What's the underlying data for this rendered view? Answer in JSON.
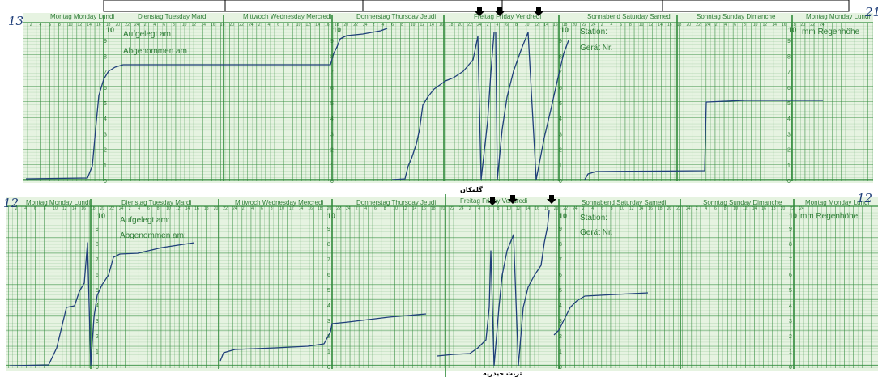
{
  "top_strip": {
    "handwritten_number": "13",
    "handwritten_right": "21",
    "day_headers": [
      "Montag  Monday  Lundi",
      "Dienstag  Tuesday  Mardi",
      "Mittwoch  Wednesday  Mercredi",
      "Donnerstag  Thursday  Jeudi",
      "Freitag  Friday  Vendredi",
      "Sonnabend  Saturday  Samedi",
      "Sonntag  Sunday  Dimanche",
      "Montag  Monday  Lundi"
    ],
    "form_labels": {
      "aufgelegt": "Aufgelegt am",
      "abgenommen": "Abgenommen am",
      "station": "Station:",
      "geraet": "Gerät Nr.",
      "regenhoehe": "mm Regenhöhe"
    },
    "scale_top": "10"
  },
  "bottom_strip": {
    "handwritten_number": "12",
    "handwritten_right": "12",
    "day_headers": [
      "Montag  Monday  Lundi",
      "Dienstag  Tuesday  Mardi",
      "Mittwoch  Wednesday  Mercredi",
      "Donnerstag  Thursday  Jeudi",
      "Freitag  Friday  Vendredi",
      "Sonnabend  Saturday  Samedi",
      "Sonntag  Sunday  Dimanche",
      "Montag  Monday  Lundi"
    ],
    "form_labels": {
      "aufgelegt": "Aufgelegt am:",
      "abgenommen": "Abgenommen am:",
      "station": "Station:",
      "geraet": "Gerät Nr.",
      "regenhoehe": "mm Regenhöhe"
    },
    "scale_top": "10"
  },
  "captions": {
    "top_location": "گلمکان",
    "bottom_location": "تربت حیدریه"
  },
  "hour_ticks": [
    "2",
    "4",
    "6",
    "8",
    "10",
    "12",
    "14",
    "16",
    "18",
    "20",
    "22",
    "24"
  ],
  "scale_values": [
    "9",
    "8",
    "7",
    "6",
    "5",
    "4",
    "3",
    "2",
    "1",
    "0"
  ],
  "colors": {
    "grid_green": "#2f8a3a",
    "paper": "#e6f3e1",
    "ink": "#1f3f7a",
    "arrow": "#000000"
  }
}
